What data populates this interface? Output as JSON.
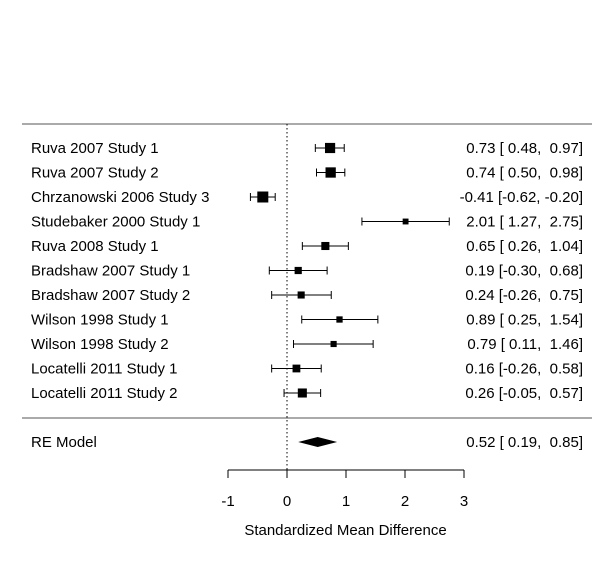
{
  "chart_data": {
    "type": "forest",
    "xlabel": "Standardized Mean Difference",
    "xlim": [
      -1,
      3
    ],
    "xticks": [
      -1,
      0,
      1,
      2,
      3
    ],
    "reference_line": 0,
    "studies": [
      {
        "label": "Ruva 2007 Study 1",
        "estimate": 0.73,
        "lower": 0.48,
        "upper": 0.97,
        "ci_text": "0.73 [ 0.48,  0.97]"
      },
      {
        "label": "Ruva 2007 Study 2",
        "estimate": 0.74,
        "lower": 0.5,
        "upper": 0.98,
        "ci_text": "0.74 [ 0.50,  0.98]"
      },
      {
        "label": "Chrzanowski 2006 Study 3",
        "estimate": -0.41,
        "lower": -0.62,
        "upper": -0.2,
        "ci_text": "-0.41 [-0.62, -0.20]"
      },
      {
        "label": "Studebaker 2000 Study 1",
        "estimate": 2.01,
        "lower": 1.27,
        "upper": 2.75,
        "ci_text": "2.01 [ 1.27,  2.75]"
      },
      {
        "label": "Ruva 2008 Study 1",
        "estimate": 0.65,
        "lower": 0.26,
        "upper": 1.04,
        "ci_text": "0.65 [ 0.26,  1.04]"
      },
      {
        "label": "Bradshaw 2007 Study 1",
        "estimate": 0.19,
        "lower": -0.3,
        "upper": 0.68,
        "ci_text": "0.19 [-0.30,  0.68]"
      },
      {
        "label": "Bradshaw 2007 Study 2",
        "estimate": 0.24,
        "lower": -0.26,
        "upper": 0.75,
        "ci_text": "0.24 [-0.26,  0.75]"
      },
      {
        "label": "Wilson 1998 Study 1",
        "estimate": 0.89,
        "lower": 0.25,
        "upper": 1.54,
        "ci_text": "0.89 [ 0.25,  1.54]"
      },
      {
        "label": "Wilson 1998 Study 2",
        "estimate": 0.79,
        "lower": 0.11,
        "upper": 1.46,
        "ci_text": "0.79 [ 0.11,  1.46]"
      },
      {
        "label": "Locatelli 2011 Study 1",
        "estimate": 0.16,
        "lower": -0.26,
        "upper": 0.58,
        "ci_text": "0.16 [-0.26,  0.58]"
      },
      {
        "label": "Locatelli 2011 Study 2",
        "estimate": 0.26,
        "lower": -0.05,
        "upper": 0.57,
        "ci_text": "0.26 [-0.05,  0.57]"
      }
    ],
    "summary": {
      "label": "RE Model",
      "estimate": 0.52,
      "lower": 0.19,
      "upper": 0.85,
      "ci_text": "0.52 [ 0.19,  0.85]"
    }
  }
}
